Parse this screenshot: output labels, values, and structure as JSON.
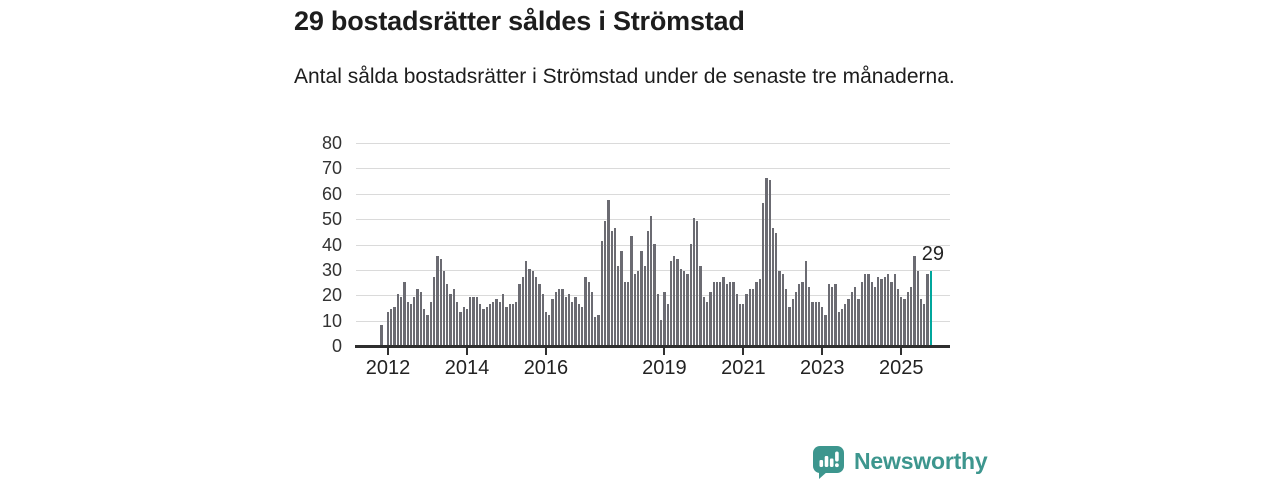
{
  "header": {
    "title": "29 bostadsrätter såldes i Strömstad",
    "subtitle": "Antal sålda bostadsrätter i Strömstad under de senaste tre månaderna."
  },
  "chart_data": {
    "type": "bar",
    "title": "29 bostadsrätter såldes i Strömstad",
    "subtitle": "Antal sålda bostadsrätter i Strömstad under de senaste tre månaderna.",
    "xlabel": "",
    "ylabel": "",
    "ylim": [
      0,
      80
    ],
    "grid": true,
    "y_ticks": [
      0,
      10,
      20,
      30,
      40,
      50,
      60,
      70,
      80
    ],
    "x_ticks": [
      {
        "label": "2012",
        "index": 2
      },
      {
        "label": "2014",
        "index": 26
      },
      {
        "label": "2016",
        "index": 50
      },
      {
        "label": "2019",
        "index": 86
      },
      {
        "label": "2021",
        "index": 110
      },
      {
        "label": "2023",
        "index": 134
      },
      {
        "label": "2025",
        "index": 158
      }
    ],
    "values": [
      8,
      0,
      13,
      14,
      15,
      20,
      19,
      25,
      17,
      16,
      19,
      22,
      21,
      14,
      12,
      17,
      27,
      35,
      34,
      29,
      24,
      20,
      22,
      17,
      13,
      15,
      14,
      19,
      19,
      19,
      16,
      14,
      15,
      16,
      17,
      18,
      17,
      20,
      15,
      16,
      16,
      17,
      24,
      27,
      33,
      30,
      29,
      27,
      24,
      20,
      13,
      12,
      18,
      21,
      22,
      22,
      19,
      20,
      17,
      19,
      16,
      15,
      27,
      25,
      21,
      11,
      12,
      41,
      49,
      57,
      45,
      46,
      31,
      37,
      25,
      25,
      43,
      28,
      29,
      37,
      31,
      45,
      51,
      40,
      20,
      10,
      21,
      16,
      33,
      35,
      34,
      30,
      29,
      28,
      40,
      50,
      49,
      31,
      19,
      17,
      21,
      25,
      25,
      25,
      27,
      24,
      25,
      25,
      20,
      16,
      16,
      20,
      22,
      22,
      25,
      26,
      56,
      66,
      65,
      46,
      44,
      29,
      28,
      22,
      15,
      18,
      21,
      24,
      25,
      33,
      23,
      17,
      17,
      17,
      15,
      12,
      24,
      23,
      24,
      13,
      14,
      16,
      18,
      21,
      23,
      18,
      25,
      28,
      28,
      25,
      23,
      27,
      26,
      27,
      28,
      25,
      28,
      22,
      19,
      18,
      21,
      23,
      35,
      29,
      18,
      16,
      28,
      29
    ],
    "highlight": {
      "index": 167,
      "value": 29,
      "label": "29"
    }
  },
  "colors": {
    "bar": "#6b6b72",
    "highlight": "#00a69c",
    "grid": "#dadada",
    "axis": "#2f2f2f",
    "brand": "#3d968e"
  },
  "footer": {
    "brand": "Newsworthy"
  }
}
